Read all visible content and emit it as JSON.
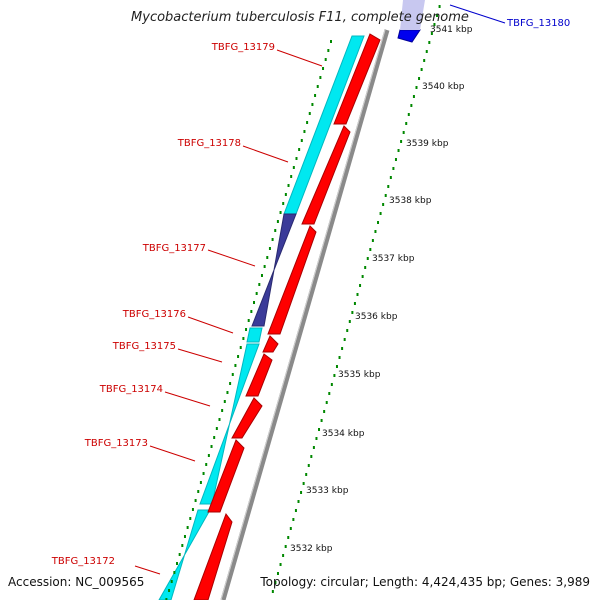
{
  "header": {
    "title": "Mycobacterium tuberculosis F11, complete genome"
  },
  "footer": {
    "accession": "Accession: NC_009565",
    "summary": "Topology: circular; Length: 4,424,435 bp; Genes: 3,989"
  },
  "colors": {
    "plus_strand": "#ff0000",
    "minus_strand": "#00ffff",
    "highlight_gene": "#3b3b99",
    "label_red": "#cc0000",
    "label_blue": "#0000cc",
    "tick_green": "#007700",
    "backbone": "#888888"
  },
  "scale": {
    "ticks": [
      {
        "label": "3541 kbp"
      },
      {
        "label": "3540 kbp"
      },
      {
        "label": "3539 kbp"
      },
      {
        "label": "3538 kbp"
      },
      {
        "label": "3537 kbp"
      },
      {
        "label": "3536 kbp"
      },
      {
        "label": "3535 kbp"
      },
      {
        "label": "3534 kbp"
      },
      {
        "label": "3533 kbp"
      },
      {
        "label": "3532 kbp"
      }
    ]
  },
  "gene_labels": [
    {
      "id": "TBFG_13180",
      "color": "blue"
    },
    {
      "id": "TBFG_13179",
      "color": "red"
    },
    {
      "id": "TBFG_13178",
      "color": "red"
    },
    {
      "id": "TBFG_13177",
      "color": "red"
    },
    {
      "id": "TBFG_13176",
      "color": "red"
    },
    {
      "id": "TBFG_13175",
      "color": "red"
    },
    {
      "id": "TBFG_13174",
      "color": "red"
    },
    {
      "id": "TBFG_13173",
      "color": "red"
    },
    {
      "id": "TBFG_13172",
      "color": "red"
    }
  ]
}
